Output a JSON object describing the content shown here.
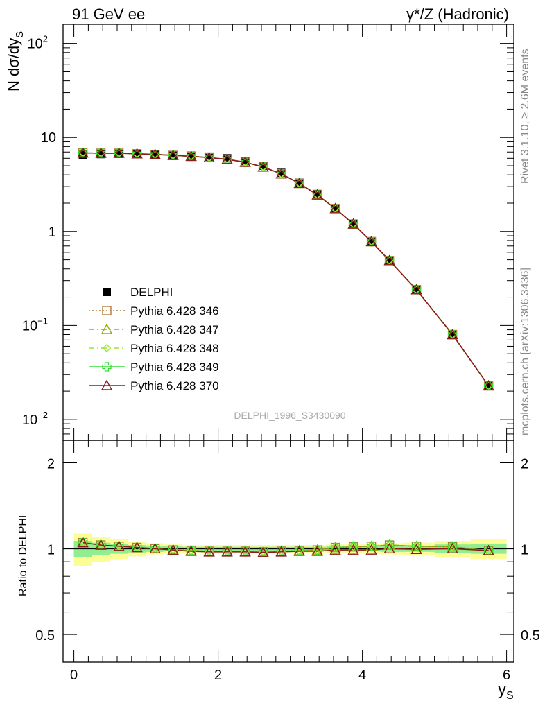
{
  "header": {
    "left_label": "91 GeV ee",
    "right_label": "γ*/Z (Hadronic)",
    "side_text_top": "Rivet 3.1.10, ≥ 2.6M events",
    "side_text_bottom": "mcplots.cern.ch [arXiv:1306.3436]",
    "analysis_id": "DELPHI_1996_S3430090"
  },
  "chart_data": [
    {
      "type": "line",
      "ylabel": "N dσ/dy_S",
      "yscale": "log",
      "ylim": [
        0.006,
        160
      ],
      "xlim": [
        -0.15,
        6.1
      ],
      "y_ticks": [
        {
          "value": 100,
          "label": "10",
          "exp": "2"
        },
        {
          "value": 10,
          "label": "10",
          "exp": ""
        },
        {
          "value": 1,
          "label": "1",
          "exp": ""
        },
        {
          "value": 0.1,
          "label": "10",
          "exp": "−1"
        },
        {
          "value": 0.01,
          "label": "10",
          "exp": "−2"
        }
      ],
      "x": [
        0.125,
        0.375,
        0.625,
        0.875,
        1.125,
        1.375,
        1.625,
        1.875,
        2.125,
        2.375,
        2.625,
        2.875,
        3.125,
        3.375,
        3.625,
        3.875,
        4.125,
        4.375,
        4.75,
        5.25,
        5.75
      ],
      "legend": [
        {
          "name": "DELPHI",
          "color": "#000000",
          "marker": "square-filled",
          "line": "none"
        },
        {
          "name": "Pythia 6.428 346",
          "color": "#b5793a",
          "marker": "square-open",
          "line": "dotted"
        },
        {
          "name": "Pythia 6.428 347",
          "color": "#8fb000",
          "marker": "triangle-open",
          "line": "dashdot"
        },
        {
          "name": "Pythia 6.428 348",
          "color": "#9be82a",
          "marker": "diamond-open",
          "line": "dashdot"
        },
        {
          "name": "Pythia 6.428 349",
          "color": "#33dd33",
          "marker": "cross-open",
          "line": "solid"
        },
        {
          "name": "Pythia 6.428 370",
          "color": "#8b1a1a",
          "marker": "triangle-open",
          "line": "solid"
        }
      ],
      "data_values": [
        6.55,
        6.65,
        6.7,
        6.65,
        6.6,
        6.5,
        6.4,
        6.25,
        6.0,
        5.6,
        5.0,
        4.2,
        3.3,
        2.5,
        1.75,
        1.2,
        0.78,
        0.49,
        0.24,
        0.08,
        0.023
      ],
      "mc_values": [
        6.85,
        6.8,
        6.8,
        6.7,
        6.6,
        6.45,
        6.3,
        6.1,
        5.85,
        5.45,
        4.85,
        4.1,
        3.25,
        2.45,
        1.75,
        1.2,
        0.78,
        0.49,
        0.24,
        0.08,
        0.0228
      ]
    },
    {
      "type": "line",
      "ylabel": "Ratio to DELPHI",
      "xlabel": "y_S",
      "yscale": "log",
      "ylim": [
        0.4,
        2.4
      ],
      "xlim": [
        -0.15,
        6.1
      ],
      "x_ticks": [
        0,
        2,
        4,
        6
      ],
      "y_ticks": [
        0.5,
        1,
        2
      ],
      "x": [
        0.125,
        0.375,
        0.625,
        0.875,
        1.125,
        1.375,
        1.625,
        1.875,
        2.125,
        2.375,
        2.625,
        2.875,
        3.125,
        3.375,
        3.625,
        3.875,
        4.125,
        4.375,
        4.75,
        5.25,
        5.75
      ],
      "ratio_370": [
        1.05,
        1.03,
        1.02,
        1.01,
        1.0,
        0.99,
        0.98,
        0.975,
        0.975,
        0.975,
        0.97,
        0.975,
        0.98,
        0.98,
        0.99,
        0.99,
        0.99,
        1.0,
        0.995,
        1.0,
        0.985
      ],
      "ratio_349": [
        1.05,
        1.03,
        1.02,
        1.01,
        1.0,
        0.99,
        0.985,
        0.98,
        0.98,
        0.98,
        0.975,
        0.98,
        0.985,
        0.99,
        1.01,
        1.015,
        1.02,
        1.03,
        1.02,
        1.015,
        0.985
      ],
      "band_yellow": [
        0.13,
        0.1,
        0.08,
        0.06,
        0.045,
        0.035,
        0.03,
        0.03,
        0.03,
        0.03,
        0.03,
        0.03,
        0.03,
        0.03,
        0.035,
        0.035,
        0.04,
        0.045,
        0.05,
        0.065,
        0.08
      ],
      "band_green": [
        0.065,
        0.05,
        0.04,
        0.03,
        0.025,
        0.02,
        0.015,
        0.015,
        0.015,
        0.015,
        0.015,
        0.015,
        0.015,
        0.015,
        0.02,
        0.02,
        0.02,
        0.025,
        0.025,
        0.035,
        0.04
      ]
    }
  ],
  "colors": {
    "band_yellow": "#fdfd96",
    "band_green": "#90ee90",
    "frame": "#000000",
    "side_text": "#888888",
    "analysis_text": "#aaaaaa"
  }
}
